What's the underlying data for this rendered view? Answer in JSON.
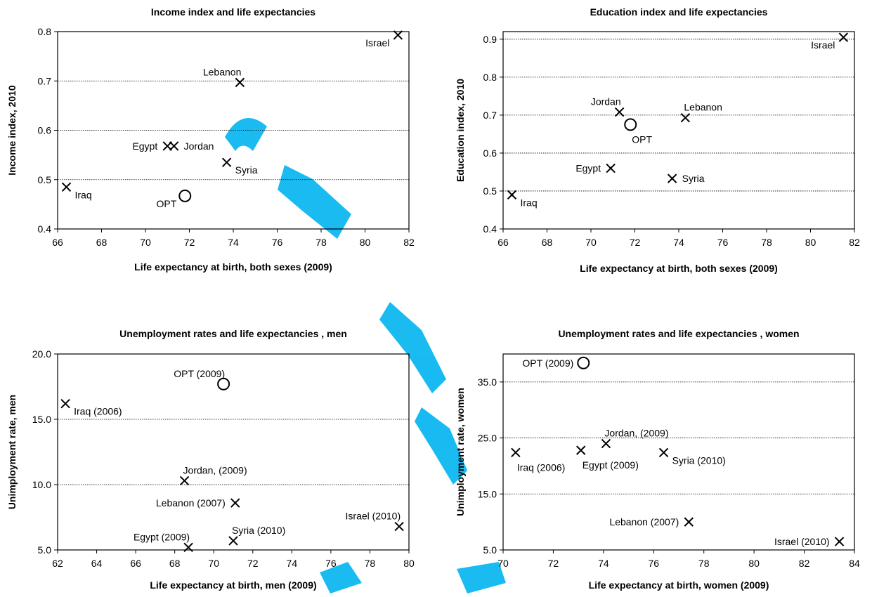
{
  "accent_color": "#00B4F0",
  "chart_data": [
    {
      "type": "scatter",
      "title": "Income index and life expectancies",
      "xlabel": "Life expectancy at birth, both sexes (2009)",
      "ylabel": "Income index, 2010",
      "xlim": [
        66,
        82
      ],
      "ylim": [
        0.4,
        0.8
      ],
      "xticks": [
        "66",
        "68",
        "70",
        "72",
        "74",
        "76",
        "78",
        "80",
        "82"
      ],
      "yticks": [
        "0.4",
        "0.5",
        "0.6",
        "0.7",
        "0.8"
      ],
      "grid": "horizontal dotted",
      "points": [
        {
          "label": "Israel",
          "x": 81.5,
          "y": 0.793,
          "marker": "x",
          "label_side": "left-below"
        },
        {
          "label": "Lebanon",
          "x": 74.3,
          "y": 0.697,
          "marker": "x",
          "label_side": "above-left"
        },
        {
          "label": "Egypt",
          "x": 71.0,
          "y": 0.568,
          "marker": "x",
          "label_side": "left"
        },
        {
          "label": "Jordan",
          "x": 71.3,
          "y": 0.568,
          "marker": "x",
          "label_side": "right"
        },
        {
          "label": "Syria",
          "x": 73.7,
          "y": 0.535,
          "marker": "x",
          "label_side": "right-below"
        },
        {
          "label": "Iraq",
          "x": 66.4,
          "y": 0.485,
          "marker": "x",
          "label_side": "right-below"
        },
        {
          "label": "OPT",
          "x": 71.8,
          "y": 0.467,
          "marker": "o",
          "label_side": "left-below"
        }
      ]
    },
    {
      "type": "scatter",
      "title": "Education index and life expectancies",
      "xlabel": "Life expectancy at birth, both sexes (2009)",
      "ylabel": "Education index, 2010",
      "xlim": [
        66,
        82
      ],
      "ylim": [
        0.4,
        0.92
      ],
      "xticks": [
        "66",
        "68",
        "70",
        "72",
        "74",
        "76",
        "78",
        "80",
        "82"
      ],
      "yticks": [
        "0.4",
        "0.5",
        "0.6",
        "0.7",
        "0.8",
        "0.9"
      ],
      "grid": "horizontal dotted",
      "points": [
        {
          "label": "Israel",
          "x": 81.5,
          "y": 0.905,
          "marker": "x",
          "label_side": "left-below"
        },
        {
          "label": "Jordan",
          "x": 71.3,
          "y": 0.708,
          "marker": "x",
          "label_side": "above-left"
        },
        {
          "label": "OPT",
          "x": 71.8,
          "y": 0.675,
          "marker": "o",
          "label_side": "below-right"
        },
        {
          "label": "Lebanon",
          "x": 74.3,
          "y": 0.693,
          "marker": "x",
          "label_side": "above-right"
        },
        {
          "label": "Egypt",
          "x": 70.9,
          "y": 0.56,
          "marker": "x",
          "label_side": "left"
        },
        {
          "label": "Syria",
          "x": 73.7,
          "y": 0.533,
          "marker": "x",
          "label_side": "right"
        },
        {
          "label": "Iraq",
          "x": 66.4,
          "y": 0.49,
          "marker": "x",
          "label_side": "right-below"
        }
      ]
    },
    {
      "type": "scatter",
      "title": "Unemployment rates and life expectancies , men",
      "xlabel": "Life expectancy at birth, men (2009)",
      "ylabel": "Unimployment rate, men",
      "xlim": [
        62,
        80
      ],
      "ylim": [
        5.0,
        20.0
      ],
      "xticks": [
        "62",
        "64",
        "66",
        "68",
        "70",
        "72",
        "74",
        "76",
        "78",
        "80"
      ],
      "yticks": [
        "5.0",
        "10.0",
        "15.0",
        "20.0"
      ],
      "grid": "horizontal dotted",
      "points": [
        {
          "label": "OPT (2009)",
          "x": 70.5,
          "y": 17.7,
          "marker": "o",
          "label_side": "above-left"
        },
        {
          "label": "Iraq (2006)",
          "x": 62.4,
          "y": 16.2,
          "marker": "x",
          "label_side": "right-below"
        },
        {
          "label": "Jordan, (2009)",
          "x": 68.5,
          "y": 10.3,
          "marker": "x",
          "label_side": "above-right"
        },
        {
          "label": "Lebanon (2007)",
          "x": 71.1,
          "y": 8.6,
          "marker": "x",
          "label_side": "left"
        },
        {
          "label": "Israel (2010)",
          "x": 79.5,
          "y": 6.8,
          "marker": "x",
          "label_side": "above-left"
        },
        {
          "label": "Syria (2010)",
          "x": 71.0,
          "y": 5.7,
          "marker": "x",
          "label_side": "above-right"
        },
        {
          "label": "Egypt (2009)",
          "x": 68.7,
          "y": 5.2,
          "marker": "x",
          "label_side": "above-left"
        }
      ]
    },
    {
      "type": "scatter",
      "title": "Unemployment rates and life expectancies , women",
      "xlabel": "Life expectancy at birth, women (2009)",
      "ylabel": "Unimployment rate, women",
      "xlim": [
        70,
        84
      ],
      "ylim": [
        5.0,
        40.0
      ],
      "xticks": [
        "70",
        "72",
        "74",
        "76",
        "78",
        "80",
        "82",
        "84"
      ],
      "yticks": [
        "5.0",
        "15.0",
        "25.0",
        "35.0"
      ],
      "grid": "horizontal dotted",
      "points": [
        {
          "label": "OPT (2009)",
          "x": 73.2,
          "y": 38.4,
          "marker": "o",
          "label_side": "left"
        },
        {
          "label": "Iraq (2006)",
          "x": 70.5,
          "y": 22.4,
          "marker": "x",
          "label_side": "below-right"
        },
        {
          "label": "Egypt (2009)",
          "x": 73.1,
          "y": 22.8,
          "marker": "x",
          "label_side": "below-right"
        },
        {
          "label": "Jordan, (2009)",
          "x": 74.1,
          "y": 24.0,
          "marker": "x",
          "label_side": "above-right"
        },
        {
          "label": "Syria (2010)",
          "x": 76.4,
          "y": 22.4,
          "marker": "x",
          "label_side": "right-below"
        },
        {
          "label": "Lebanon (2007)",
          "x": 77.4,
          "y": 10.0,
          "marker": "x",
          "label_side": "left"
        },
        {
          "label": "Israel (2010)",
          "x": 83.4,
          "y": 6.5,
          "marker": "x",
          "label_side": "left"
        }
      ]
    }
  ]
}
